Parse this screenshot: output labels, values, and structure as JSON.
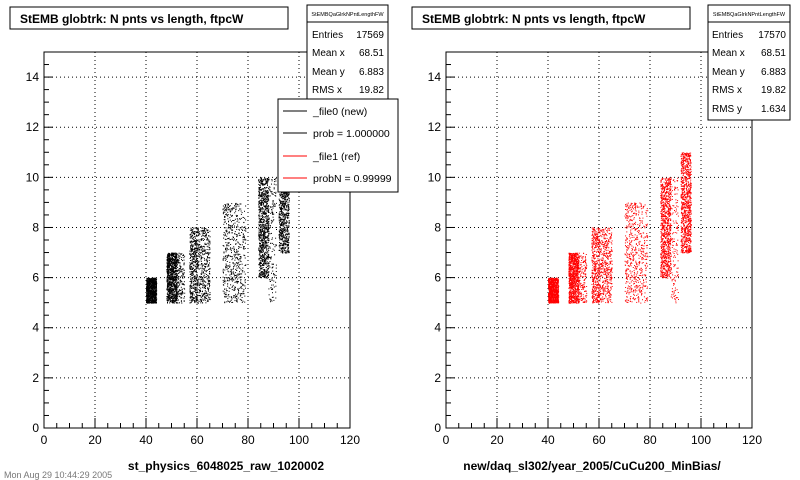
{
  "charts": [
    {
      "title": "StEMB globtrk: N pnts vs length, ftpcW",
      "stats_header": "StEMBQaGlrkNPntLengthFW",
      "stats": [
        {
          "label": "Entries",
          "value": "17569"
        },
        {
          "label": "Mean x",
          "value": "68.51"
        },
        {
          "label": "Mean y",
          "value": "6.883"
        },
        {
          "label": "RMS x",
          "value": "19.82"
        }
      ],
      "legend": [
        {
          "label": "_file0 (new)",
          "color": "#000000"
        },
        {
          "label": "prob = 1.000000",
          "color": "#000000"
        },
        {
          "label": "_file1 (ref)",
          "color": "#ff0000"
        },
        {
          "label": "probN = 0.99999",
          "color": "#ff0000"
        }
      ],
      "xlabel": "st_physics_6048025_raw_1020002",
      "color": "#000000"
    },
    {
      "title": "StEMB globtrk: N pnts vs length, ftpcW",
      "stats_header": "StEMBQaGlrkNPntLengthFW",
      "stats": [
        {
          "label": "Entries",
          "value": "17570"
        },
        {
          "label": "Mean x",
          "value": "68.51"
        },
        {
          "label": "Mean y",
          "value": "6.883"
        },
        {
          "label": "RMS x",
          "value": "19.82"
        },
        {
          "label": "RMS y",
          "value": "1.634"
        }
      ],
      "xlabel": "new/daq_sl302/year_2005/CuCu200_MinBias/",
      "color": "#ff0000"
    }
  ],
  "footer": "Mon Aug 29 10:44:29 2005",
  "chart_data": [
    {
      "type": "scatter",
      "title": "StEMB globtrk: N pnts vs length, ftpcW",
      "xlabel": "st_physics_6048025_raw_1020002",
      "ylabel": "",
      "xlim": [
        0,
        120
      ],
      "ylim": [
        0,
        15
      ],
      "x_ticks": [
        0,
        20,
        40,
        60,
        80,
        100,
        120
      ],
      "y_ticks": [
        0,
        2,
        4,
        6,
        8,
        10,
        12,
        14
      ],
      "grid": true,
      "series_color": "#000000",
      "bands": [
        {
          "x": [
            40,
            44
          ],
          "y": [
            5,
            6
          ],
          "density": "dense"
        },
        {
          "x": [
            48,
            52
          ],
          "y": [
            5,
            7
          ],
          "density": "dense"
        },
        {
          "x": [
            52,
            55
          ],
          "y": [
            5,
            7
          ],
          "density": "sparse"
        },
        {
          "x": [
            57,
            60
          ],
          "y": [
            5,
            8
          ],
          "density": "medium"
        },
        {
          "x": [
            60,
            65
          ],
          "y": [
            5,
            8
          ],
          "density": "medium"
        },
        {
          "x": [
            70,
            76
          ],
          "y": [
            5,
            9
          ],
          "density": "medium"
        },
        {
          "x": [
            76,
            79
          ],
          "y": [
            5,
            9
          ],
          "density": "sparse"
        },
        {
          "x": [
            84,
            88
          ],
          "y": [
            6,
            10
          ],
          "density": "dense"
        },
        {
          "x": [
            88,
            91
          ],
          "y": [
            5,
            10
          ],
          "density": "sparse"
        },
        {
          "x": [
            92,
            96
          ],
          "y": [
            7,
            11
          ],
          "density": "dense"
        }
      ]
    },
    {
      "type": "scatter",
      "title": "StEMB globtrk: N pnts vs length, ftpcW",
      "xlabel": "new/daq_sl302/year_2005/CuCu200_MinBias/",
      "ylabel": "",
      "xlim": [
        0,
        120
      ],
      "ylim": [
        0,
        15
      ],
      "x_ticks": [
        0,
        20,
        40,
        60,
        80,
        100,
        120
      ],
      "y_ticks": [
        0,
        2,
        4,
        6,
        8,
        10,
        12,
        14
      ],
      "grid": true,
      "series_color": "#ff0000",
      "bands": [
        {
          "x": [
            40,
            44
          ],
          "y": [
            5,
            6
          ],
          "density": "dense"
        },
        {
          "x": [
            48,
            52
          ],
          "y": [
            5,
            7
          ],
          "density": "dense"
        },
        {
          "x": [
            52,
            55
          ],
          "y": [
            5,
            7
          ],
          "density": "sparse"
        },
        {
          "x": [
            57,
            60
          ],
          "y": [
            5,
            8
          ],
          "density": "medium"
        },
        {
          "x": [
            60,
            65
          ],
          "y": [
            5,
            8
          ],
          "density": "medium"
        },
        {
          "x": [
            70,
            76
          ],
          "y": [
            5,
            9
          ],
          "density": "medium"
        },
        {
          "x": [
            76,
            79
          ],
          "y": [
            5,
            9
          ],
          "density": "sparse"
        },
        {
          "x": [
            84,
            88
          ],
          "y": [
            6,
            10
          ],
          "density": "dense"
        },
        {
          "x": [
            88,
            91
          ],
          "y": [
            5,
            10
          ],
          "density": "sparse"
        },
        {
          "x": [
            92,
            96
          ],
          "y": [
            7,
            11
          ],
          "density": "dense"
        }
      ]
    }
  ]
}
